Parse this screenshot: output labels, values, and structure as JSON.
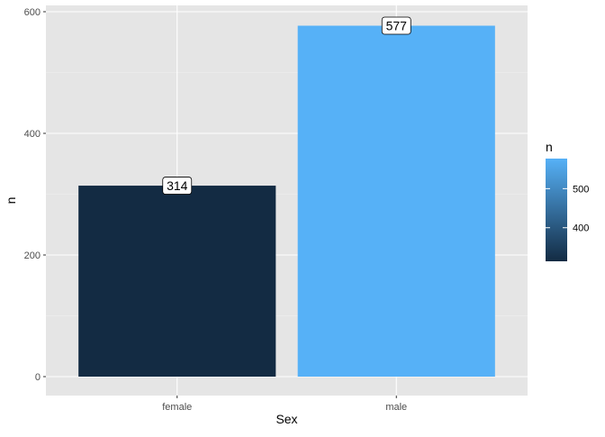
{
  "chart_data": {
    "type": "bar",
    "categories": [
      "female",
      "male"
    ],
    "values": [
      314,
      577
    ],
    "data_labels": [
      "314",
      "577"
    ],
    "xlabel": "Sex",
    "ylabel": "n",
    "ylim": [
      0,
      600
    ],
    "yticks": [
      0,
      200,
      400,
      600
    ],
    "grid": true,
    "legend": {
      "title": "n",
      "type": "colorbar",
      "placement": "right",
      "ticks": [
        400,
        500
      ],
      "range": [
        314,
        577
      ],
      "low_color": "#132b43",
      "high_color": "#56b1f7"
    },
    "colors": {
      "panel_background": "#e5e5e5",
      "grid_major": "#ffffff",
      "grid_minor": "#f2f2f2"
    }
  }
}
